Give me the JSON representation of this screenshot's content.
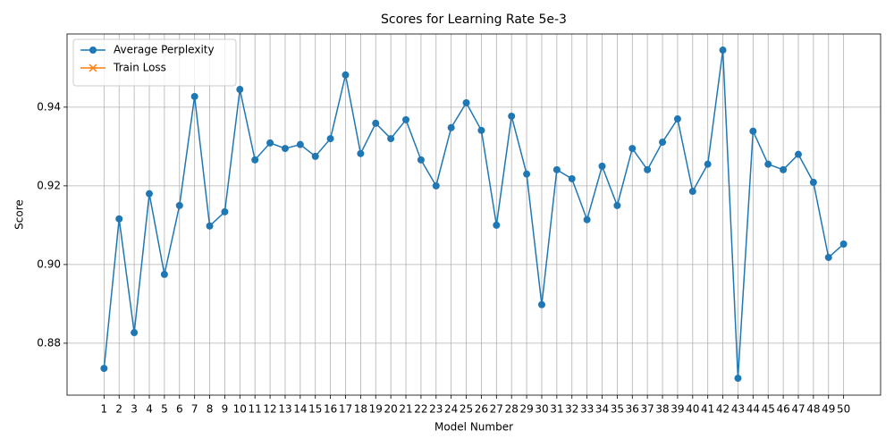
{
  "chart_data": {
    "type": "line",
    "title": "Scores for Learning Rate 5e-3",
    "x_label": "Model Number",
    "y_label": "Score",
    "x": [
      1,
      2,
      3,
      4,
      5,
      6,
      7,
      8,
      9,
      10,
      11,
      12,
      13,
      14,
      15,
      16,
      17,
      18,
      19,
      20,
      21,
      22,
      23,
      24,
      25,
      26,
      27,
      28,
      29,
      30,
      31,
      32,
      33,
      34,
      35,
      36,
      37,
      38,
      39,
      40,
      41,
      42,
      43,
      44,
      45,
      46,
      47,
      48,
      49,
      50
    ],
    "series": [
      {
        "name": "Average Perplexity",
        "color": "#1f77b4",
        "marker": "o",
        "values": [
          0.8736,
          0.9116,
          0.8827,
          0.918,
          0.8975,
          0.915,
          0.9427,
          0.9098,
          0.9134,
          0.9445,
          0.9266,
          0.9309,
          0.9295,
          0.9305,
          0.9275,
          0.932,
          0.9482,
          0.9282,
          0.9359,
          0.932,
          0.9368,
          0.9266,
          0.92,
          0.9348,
          0.9411,
          0.9341,
          0.91,
          0.9377,
          0.923,
          0.8898,
          0.9241,
          0.9218,
          0.9114,
          0.925,
          0.915,
          0.9295,
          0.9241,
          0.9311,
          0.937,
          0.9186,
          0.9255,
          0.9545,
          0.8711,
          0.9339,
          0.9255,
          0.9241,
          0.928,
          0.9209,
          0.9018,
          0.9052
        ]
      },
      {
        "name": "Train Loss",
        "color": "#ff7f0e",
        "marker": "x",
        "values": [
          null,
          null,
          null,
          null,
          null,
          null,
          null,
          null,
          null,
          null,
          null,
          null,
          null,
          null,
          null,
          null,
          null,
          null,
          null,
          null,
          null,
          null,
          null,
          null,
          null,
          null,
          null,
          null,
          null,
          null,
          null,
          null,
          null,
          null,
          null,
          null,
          null,
          null,
          null,
          null,
          null,
          null,
          null,
          null,
          null,
          null,
          null,
          null,
          null,
          null
        ]
      }
    ],
    "xlim": [
      -1.45,
      52.45
    ],
    "xticks": [
      1,
      2,
      3,
      4,
      5,
      6,
      7,
      8,
      9,
      10,
      11,
      12,
      13,
      14,
      15,
      16,
      17,
      18,
      19,
      20,
      21,
      22,
      23,
      24,
      25,
      26,
      27,
      28,
      29,
      30,
      31,
      32,
      33,
      34,
      35,
      36,
      37,
      38,
      39,
      40,
      41,
      42,
      43,
      44,
      45,
      46,
      47,
      48,
      49,
      50
    ],
    "ylim": [
      0.8668,
      0.9586
    ],
    "yticks": [
      0.88,
      {
        "value": 0.9,
        "label": "0.90"
      },
      0.92,
      0.94
    ],
    "grid": true,
    "legend": "upper left"
  }
}
